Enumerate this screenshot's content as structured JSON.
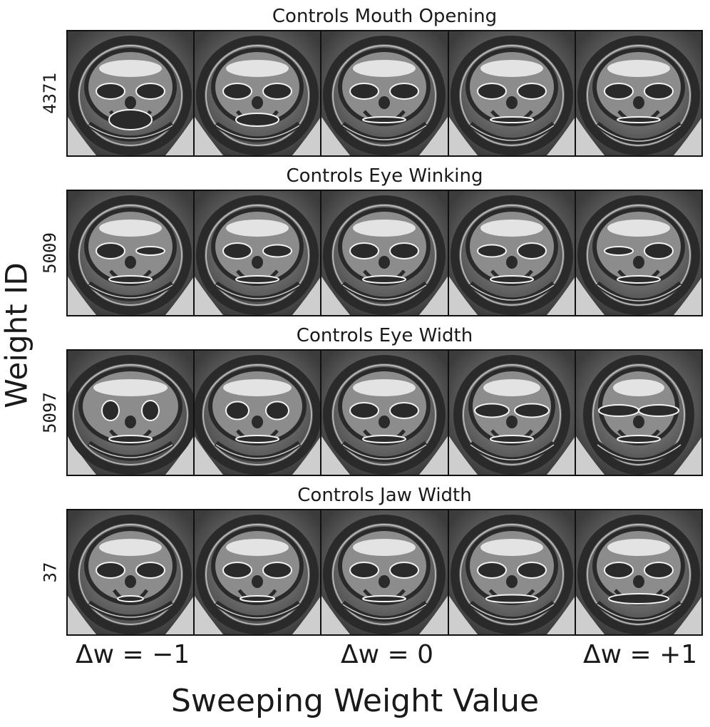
{
  "rows": [
    {
      "title": "Controls Mouth Opening",
      "weight_id": "4371",
      "variant": "mouth"
    },
    {
      "title": "Controls Eye Winking",
      "weight_id": "5009",
      "variant": "wink"
    },
    {
      "title": "Controls Eye Width",
      "weight_id": "5097",
      "variant": "eyewidth"
    },
    {
      "title": "Controls Jaw Width",
      "weight_id": "37",
      "variant": "jaw"
    }
  ],
  "sweep_labels": {
    "minus": "Δw = −1",
    "zero": "Δw = 0",
    "plus": "Δw = +1"
  },
  "axes": {
    "ylabel": "Weight ID",
    "xlabel": "Sweeping Weight Value"
  },
  "colors": {
    "background": "#7a7a7a",
    "dark_band": "#2a2a2a",
    "highlight": "#f2f2f2",
    "border": "#111111"
  }
}
